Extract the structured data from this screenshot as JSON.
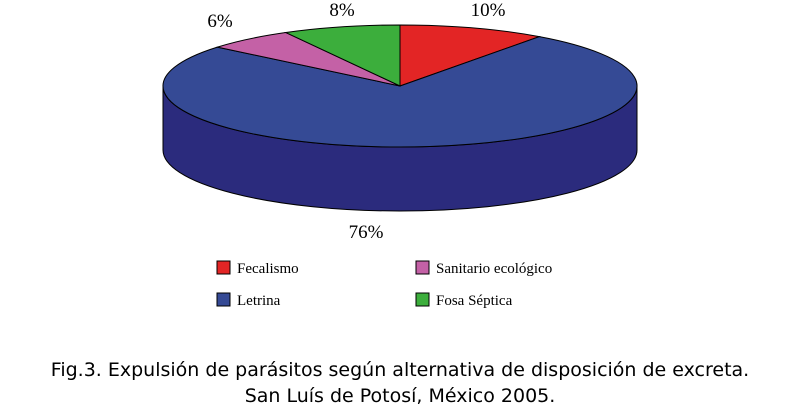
{
  "chart_data": {
    "type": "pie",
    "style": "3d",
    "categories": [
      "Fecalismo",
      "Letrina",
      "Sanitario ecológico",
      "Fosa Séptica"
    ],
    "values": [
      10,
      76,
      6,
      8
    ],
    "value_labels": [
      "10%",
      "76%",
      "6%",
      "8%"
    ],
    "colors": [
      "#e32525",
      "#354a95",
      "#c461a6",
      "#3cae3c"
    ],
    "side_colors": [
      "#8a1414",
      "#2b2b7d",
      "#7a3468",
      "#226a22"
    ],
    "legend": {
      "placement": "bottom",
      "entries": [
        {
          "label": "Fecalismo",
          "color": "#e32525"
        },
        {
          "label": "Sanitario ecológico",
          "color": "#c461a6"
        },
        {
          "label": "Letrina",
          "color": "#354a95"
        },
        {
          "label": "Fosa Séptica",
          "color": "#3cae3c"
        }
      ]
    }
  },
  "caption": {
    "line1": "Fig.3. Expulsión de parásitos según alternativa de disposición de excreta.",
    "line2": "San Luís de Potosí, México 2005."
  }
}
